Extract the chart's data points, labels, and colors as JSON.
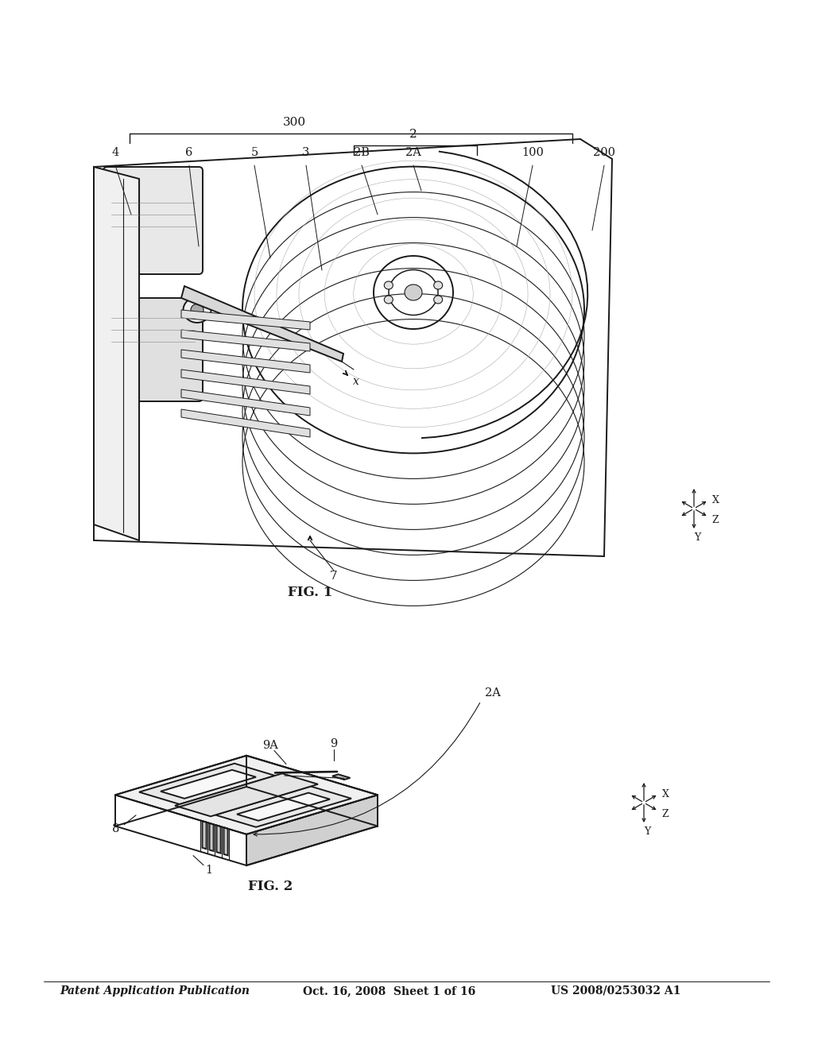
{
  "background_color": "#ffffff",
  "header_left": "Patent Application Publication",
  "header_mid": "Oct. 16, 2008  Sheet 1 of 16",
  "header_right": "US 2008/0253032 A1",
  "fig1_label": "FIG. 1",
  "fig2_label": "FIG. 2",
  "text_color": "#1a1a1a",
  "line_color": "#1a1a1a",
  "lw_main": 1.4,
  "lw_thin": 0.8,
  "lw_leader": 0.7
}
